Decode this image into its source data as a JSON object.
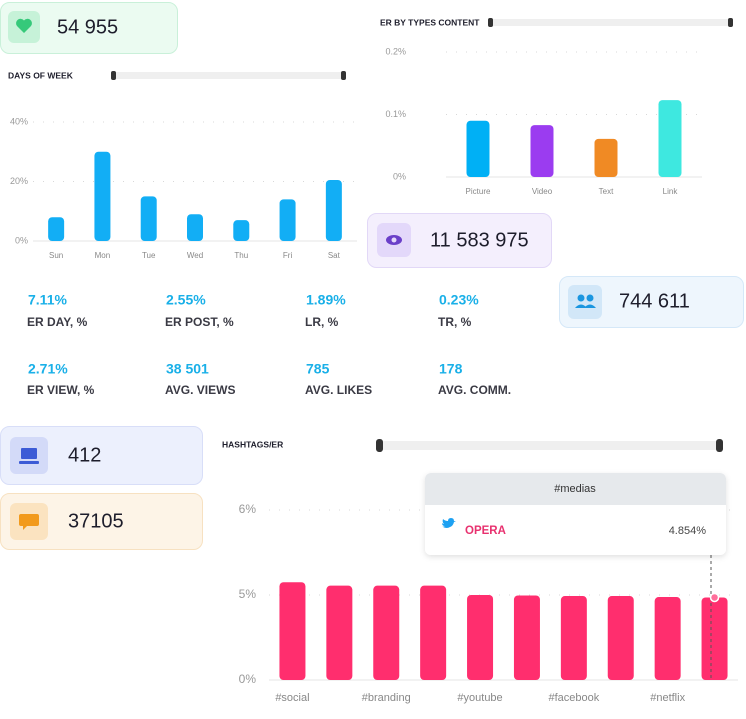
{
  "stat_cards": [
    "54 955",
    "11 583 975",
    "744 611",
    "412",
    "37105"
  ],
  "metrics": [
    {
      "value": "7.11%",
      "label": "ER DAY, %"
    },
    {
      "value": "2.55%",
      "label": "ER POST, %"
    },
    {
      "value": "1.89%",
      "label": "LR, %"
    },
    {
      "value": "0.23%",
      "label": "TR, %"
    },
    {
      "value": "2.71%",
      "label": "ER VIEW, %"
    },
    {
      "value": "38 501",
      "label": "AVG. VIEWS"
    },
    {
      "value": "785",
      "label": "AVG. LIKES"
    },
    {
      "value": "178",
      "label": "AVG. COMM."
    }
  ],
  "chart_data": [
    {
      "type": "bar",
      "title": "DAYS OF WEEK",
      "categories": [
        "Sun",
        "Mon",
        "Tue",
        "Wed",
        "Thu",
        "Fri",
        "Sat"
      ],
      "values": [
        8,
        30,
        15,
        9,
        7,
        14,
        20.5
      ],
      "color": "#12aef5",
      "ylim": [
        0,
        40
      ],
      "yticks": [
        {
          "value": 0,
          "label": "0%"
        },
        {
          "value": 20,
          "label": "20%"
        },
        {
          "value": 40,
          "label": "40%"
        }
      ],
      "grid": true
    },
    {
      "type": "bar",
      "title": "ER BY TYPES CONTENT",
      "categories": [
        "Picture",
        "Video",
        "Text",
        "Link"
      ],
      "values": [
        0.09,
        0.083,
        0.061,
        0.123
      ],
      "colors": [
        "#00b0f5",
        "#9b3cf0",
        "#f08a24",
        "#3ee8e0"
      ],
      "ylim": [
        0,
        0.2
      ],
      "yticks": [
        {
          "value": 0,
          "label": "0%"
        },
        {
          "value": 0.1,
          "label": "0.1%"
        },
        {
          "value": 0.2,
          "label": "0.2%"
        }
      ],
      "grid": true
    },
    {
      "type": "bar",
      "title": "HASHTAGS/ER",
      "categories": [
        "#social",
        null,
        "#branding",
        null,
        "#youtube",
        null,
        "#facebook",
        null,
        "#netflix",
        null
      ],
      "values": [
        5.15,
        5.11,
        5.11,
        5.11,
        5.0,
        4.97,
        4.94,
        4.94,
        4.88,
        4.854
      ],
      "color": "#ff2e6e",
      "value_labels": [
        null,
        null,
        null,
        null,
        null,
        null,
        null,
        null,
        null,
        "4.854%"
      ],
      "ylim": [
        0,
        6
      ],
      "yticks": [
        {
          "value": 0,
          "label": "0%"
        },
        {
          "value": 5,
          "label": "5%"
        },
        {
          "value": 6,
          "label": "6%"
        }
      ],
      "grid": true,
      "tooltip": {
        "title": "#medias",
        "label": "OPERA"
      }
    }
  ]
}
